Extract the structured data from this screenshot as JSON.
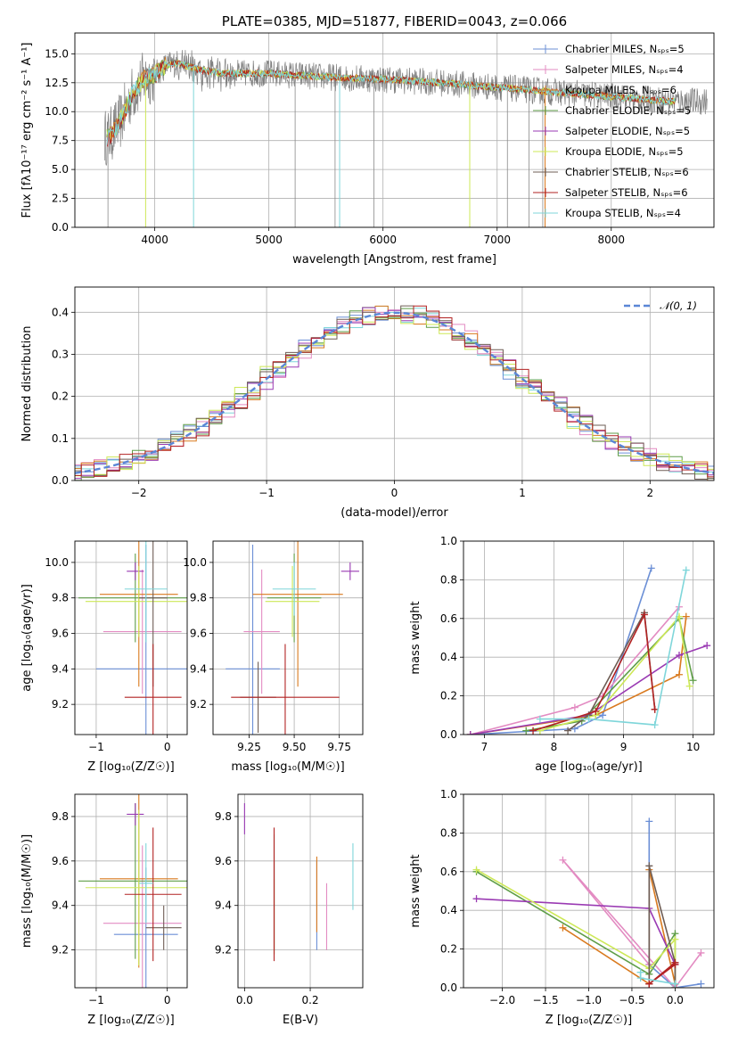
{
  "series_colors": [
    "#6b8fd6",
    "#e38bc2",
    "#d97a1f",
    "#5f9e48",
    "#9a3ab3",
    "#cde857",
    "#6e5d55",
    "#b22222",
    "#7fd6da"
  ],
  "chart_data": [
    {
      "id": "spectrum",
      "type": "line",
      "title": "PLATE=0385, MJD=51877, FIBERID=0043, z=0.066",
      "xlabel": "wavelength [Angstrom, rest frame]",
      "ylabel": "Flux [fλ10⁻¹⁷ erg cm⁻² s⁻¹ A⁻¹]",
      "xlim": [
        3300,
        8900
      ],
      "ylim": [
        0,
        16.8
      ],
      "xticks": [
        "4000",
        "5000",
        "6000",
        "7000",
        "8000"
      ],
      "yticks": [
        "0.0",
        "2.5",
        "5.0",
        "7.5",
        "10.0",
        "12.5",
        "15.0"
      ],
      "legend_position": "right",
      "legend": [
        "Chabrier MILES, Nₛₚₛ=5",
        "Salpeter MILES, Nₛₚₛ=4",
        "Kroupa MILES, Nₛₚₛ=6",
        "Chabrier ELODIE, Nₛₚₛ=5",
        "Salpeter ELODIE, Nₛₚₛ=5",
        "Kroupa ELODIE, Nₛₚₛ=5",
        "Chabrier STELIB, Nₛₚₛ=6",
        "Salpeter STELIB, Nₛₚₛ=6",
        "Kroupa STELIB, Nₛₚₛ=4"
      ],
      "continuum": {
        "x": [
          3600,
          3700,
          3800,
          3900,
          4000,
          4100,
          4200,
          4400,
          4600,
          5000,
          5500,
          6000,
          6500,
          7000,
          7500,
          8000,
          8500
        ],
        "y": [
          7.8,
          9.2,
          11.5,
          12.8,
          13.2,
          14.0,
          14.2,
          13.6,
          13.3,
          13.3,
          13.0,
          12.8,
          12.5,
          12.1,
          11.7,
          11.3,
          10.9
        ]
      }
    },
    {
      "id": "residuals",
      "type": "line",
      "xlabel": "(data-model)/error",
      "ylabel": "Normed distribution",
      "xlim": [
        -2.5,
        2.5
      ],
      "ylim": [
        0,
        0.46
      ],
      "xticks": [
        "−2",
        "−1",
        "0",
        "1",
        "2"
      ],
      "yticks": [
        "0.0",
        "0.1",
        "0.2",
        "0.3",
        "0.4"
      ],
      "legend_position": "top-right",
      "legend": [
        "𝒩(0, 1)"
      ],
      "gaussian": {
        "mean": 0,
        "sigma": 1
      }
    },
    {
      "id": "age-vs-z",
      "type": "scatter",
      "xlabel": "Z [log₁₀(Z/Z☉)]",
      "ylabel": "age  [log₁₀(age/yr)]",
      "xlim": [
        -1.3,
        0.28
      ],
      "ylim": [
        9.03,
        10.12
      ],
      "xticks": [
        "−1",
        "0"
      ],
      "yticks": [
        "9.2",
        "9.4",
        "9.6",
        "9.8",
        "10.0"
      ],
      "points": [
        {
          "x": -0.3,
          "y": 9.4,
          "xerr": 0.7,
          "yerr": 0.7
        },
        {
          "x": -0.35,
          "y": 9.61,
          "xerr": 0.55,
          "yerr": 0.35
        },
        {
          "x": -0.4,
          "y": 9.82,
          "xerr": 0.55,
          "yerr": 0.52
        },
        {
          "x": -0.45,
          "y": 9.8,
          "xerr": 0.8,
          "yerr": 0.25
        },
        {
          "x": -0.45,
          "y": 9.95,
          "xerr": 0.12,
          "yerr": 0.05
        },
        {
          "x": -0.4,
          "y": 9.78,
          "xerr": 0.75,
          "yerr": 0.2
        },
        {
          "x": -0.2,
          "y": 9.8,
          "xerr": 0.2,
          "yerr": 0.5
        },
        {
          "x": -0.2,
          "y": 9.24,
          "xerr": 0.4,
          "yerr": 0.3
        },
        {
          "x": -0.3,
          "y": 9.85,
          "xerr": 0.3,
          "yerr": 0.3
        }
      ]
    },
    {
      "id": "age-vs-mass",
      "type": "scatter",
      "xlabel": "mass [log₁₀(M/M☉)]",
      "ylabel": "",
      "xlim": [
        9.05,
        9.88
      ],
      "ylim": [
        9.03,
        10.12
      ],
      "xticks": [
        "9.25",
        "9.50",
        "9.75"
      ],
      "yticks": [
        "9.2",
        "9.4",
        "9.6",
        "9.8",
        "10.0"
      ],
      "points": [
        {
          "x": 9.27,
          "y": 9.4,
          "xerr": 0.15,
          "yerr": 0.7
        },
        {
          "x": 9.32,
          "y": 9.61,
          "xerr": 0.1,
          "yerr": 0.35
        },
        {
          "x": 9.52,
          "y": 9.82,
          "xerr": 0.25,
          "yerr": 0.52
        },
        {
          "x": 9.5,
          "y": 9.8,
          "xerr": 0.15,
          "yerr": 0.25
        },
        {
          "x": 9.81,
          "y": 9.95,
          "xerr": 0.05,
          "yerr": 0.05
        },
        {
          "x": 9.49,
          "y": 9.78,
          "xerr": 0.15,
          "yerr": 0.2
        },
        {
          "x": 9.3,
          "y": 9.24,
          "xerr": 0.1,
          "yerr": 0.2
        },
        {
          "x": 9.45,
          "y": 9.24,
          "xerr": 0.3,
          "yerr": 0.3
        },
        {
          "x": 9.5,
          "y": 9.85,
          "xerr": 0.12,
          "yerr": 0.15
        }
      ]
    },
    {
      "id": "mass-weight-vs-age",
      "type": "line",
      "xlabel": "age  [log₁₀(age/yr)]",
      "ylabel": "mass weight",
      "xlim": [
        6.7,
        10.3
      ],
      "ylim": [
        0,
        1.0
      ],
      "xticks": [
        "7",
        "8",
        "9",
        "10"
      ],
      "yticks": [
        "0.0",
        "0.2",
        "0.4",
        "0.6",
        "0.8",
        "1.0"
      ],
      "series": [
        {
          "x": [
            6.8,
            8.3,
            8.7,
            9.4
          ],
          "y": [
            0.0,
            0.03,
            0.1,
            0.86
          ]
        },
        {
          "x": [
            6.8,
            8.3,
            8.7,
            9.8
          ],
          "y": [
            0.0,
            0.14,
            0.2,
            0.66
          ]
        },
        {
          "x": [
            6.8,
            8.6,
            9.8,
            9.9
          ],
          "y": [
            0.0,
            0.1,
            0.31,
            0.61
          ]
        },
        {
          "x": [
            7.6,
            8.4,
            9.8,
            10.0
          ],
          "y": [
            0.02,
            0.07,
            0.6,
            0.28
          ]
        },
        {
          "x": [
            6.8,
            8.5,
            9.8,
            10.2
          ],
          "y": [
            0.0,
            0.1,
            0.41,
            0.46
          ]
        },
        {
          "x": [
            7.8,
            8.6,
            9.8,
            9.95
          ],
          "y": [
            0.02,
            0.1,
            0.61,
            0.25
          ]
        },
        {
          "x": [
            8.2,
            8.5,
            9.3,
            9.45
          ],
          "y": [
            0.02,
            0.1,
            0.63,
            0.13
          ]
        },
        {
          "x": [
            7.7,
            8.6,
            9.3,
            9.45
          ],
          "y": [
            0.02,
            0.12,
            0.62,
            0.13
          ]
        },
        {
          "x": [
            7.8,
            8.5,
            9.45,
            9.9
          ],
          "y": [
            0.08,
            0.08,
            0.05,
            0.85
          ]
        }
      ]
    },
    {
      "id": "mass-vs-z",
      "type": "scatter",
      "xlabel": "Z [log₁₀(Z/Z☉)]",
      "ylabel": "mass [log₁₀(M/M☉)]",
      "xlim": [
        -1.3,
        0.28
      ],
      "ylim": [
        9.03,
        9.9
      ],
      "xticks": [
        "−1",
        "0"
      ],
      "yticks": [
        "9.2",
        "9.4",
        "9.6",
        "9.8"
      ],
      "points": [
        {
          "x": -0.3,
          "y": 9.27,
          "xerr": 0.45,
          "yerr": 0.3
        },
        {
          "x": -0.35,
          "y": 9.32,
          "xerr": 0.55,
          "yerr": 0.35
        },
        {
          "x": -0.4,
          "y": 9.52,
          "xerr": 0.55,
          "yerr": 0.4
        },
        {
          "x": -0.45,
          "y": 9.51,
          "xerr": 0.8,
          "yerr": 0.35
        },
        {
          "x": -0.45,
          "y": 9.81,
          "xerr": 0.12,
          "yerr": 0.05
        },
        {
          "x": -0.4,
          "y": 9.48,
          "xerr": 0.75,
          "yerr": 0.35
        },
        {
          "x": -0.05,
          "y": 9.3,
          "xerr": 0.25,
          "yerr": 0.1
        },
        {
          "x": -0.2,
          "y": 9.45,
          "xerr": 0.4,
          "yerr": 0.3
        },
        {
          "x": -0.3,
          "y": 9.5,
          "xerr": 0.1,
          "yerr": 0.18
        }
      ]
    },
    {
      "id": "mass-vs-ebv",
      "type": "scatter",
      "xlabel": "E(B-V)",
      "ylabel": "",
      "xlim": [
        -0.02,
        0.36
      ],
      "ylim": [
        9.03,
        9.9
      ],
      "xticks": [
        "0.0",
        "0.2"
      ],
      "yticks": [
        "9.2",
        "9.4",
        "9.6",
        "9.8"
      ],
      "points": [
        {
          "x": 0.22,
          "y": 9.4,
          "xerr": 0,
          "yerr": 0.2
        },
        {
          "x": 0.25,
          "y": 9.35,
          "xerr": 0,
          "yerr": 0.15
        },
        {
          "x": 0.22,
          "y": 9.45,
          "xerr": 0,
          "yerr": 0.17
        },
        {
          "x": 0.09,
          "y": 9.45,
          "xerr": 0,
          "yerr": 0.27
        },
        {
          "x": 0.0,
          "y": 9.79,
          "xerr": 0,
          "yerr": 0.07
        },
        {
          "x": 0.09,
          "y": 9.35,
          "xerr": 0,
          "yerr": 0.17
        },
        {
          "x": 0.09,
          "y": 9.4,
          "xerr": 0,
          "yerr": 0.2
        },
        {
          "x": 0.09,
          "y": 9.45,
          "xerr": 0,
          "yerr": 0.3
        },
        {
          "x": 0.33,
          "y": 9.53,
          "xerr": 0,
          "yerr": 0.15
        }
      ]
    },
    {
      "id": "mass-weight-vs-z",
      "type": "line",
      "xlabel": "Z [log₁₀(Z/Z☉)]",
      "ylabel": "mass weight",
      "xlim": [
        -2.45,
        0.45
      ],
      "ylim": [
        0,
        1.0
      ],
      "xticks": [
        "−2.0",
        "−1.5",
        "−1.0",
        "−0.5",
        "0.0"
      ],
      "yticks": [
        "0.0",
        "0.2",
        "0.4",
        "0.6",
        "0.8",
        "1.0"
      ],
      "series": [
        {
          "x": [
            0.3,
            0.0,
            -0.3,
            -0.3
          ],
          "y": [
            0.02,
            0.0,
            0.12,
            0.86
          ]
        },
        {
          "x": [
            0.3,
            0.0,
            -1.3,
            -0.3
          ],
          "y": [
            0.18,
            0.0,
            0.66,
            0.12
          ]
        },
        {
          "x": [
            -1.3,
            -0.3,
            -0.3,
            0.0
          ],
          "y": [
            0.31,
            0.02,
            0.61,
            0.02
          ]
        },
        {
          "x": [
            -2.3,
            -0.3,
            0.0,
            0.0
          ],
          "y": [
            0.6,
            0.07,
            0.28,
            0.02
          ]
        },
        {
          "x": [
            -2.3,
            -0.3,
            0.0,
            0.0
          ],
          "y": [
            0.46,
            0.41,
            0.12,
            0.0
          ]
        },
        {
          "x": [
            -2.3,
            -0.3,
            0.0,
            0.0
          ],
          "y": [
            0.61,
            0.1,
            0.25,
            0.0
          ]
        },
        {
          "x": [
            -0.3,
            -0.3,
            0.0,
            0.0
          ],
          "y": [
            0.02,
            0.63,
            0.13,
            0.0
          ]
        },
        {
          "x": [
            -0.3,
            0.0,
            0.0,
            -0.3
          ],
          "y": [
            0.02,
            0.12,
            0.13,
            0.02
          ]
        },
        {
          "x": [
            -0.4,
            -0.4,
            -0.4,
            0.0
          ],
          "y": [
            0.08,
            0.08,
            0.05,
            0.02
          ]
        }
      ]
    }
  ]
}
